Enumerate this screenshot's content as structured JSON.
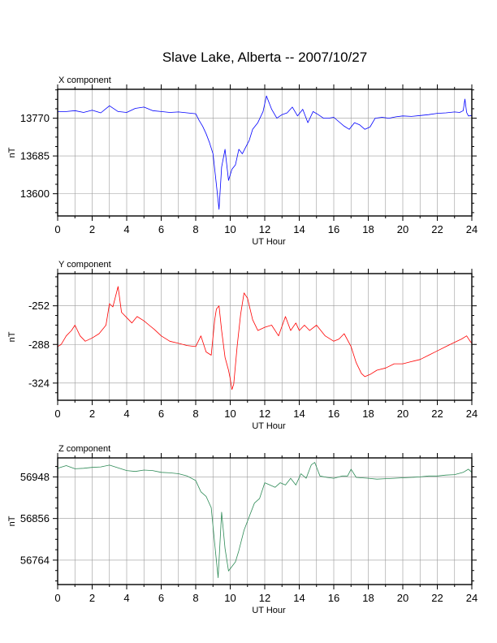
{
  "figure": {
    "title": "Slave Lake, Alberta -- 2007/10/27"
  },
  "chart_data": [
    {
      "type": "line",
      "panel_title": "X component",
      "xlabel": "UT Hour",
      "ylabel": "nT",
      "xlim": [
        0,
        24
      ],
      "ylim": [
        13550,
        13835
      ],
      "x_ticks": [
        0,
        2,
        4,
        6,
        8,
        10,
        12,
        14,
        16,
        18,
        20,
        22,
        24
      ],
      "y_ticks": [
        13600,
        13685,
        13770
      ],
      "grid": true,
      "color": "#0000ff",
      "series": [
        {
          "x": [
            0,
            0.5,
            1,
            1.5,
            2,
            2.5,
            3,
            3.5,
            4,
            4.5,
            5,
            5.5,
            6,
            6.5,
            7,
            7.5,
            8,
            8.2,
            8.4,
            8.6,
            8.8,
            9,
            9.2,
            9.35,
            9.5,
            9.7,
            9.9,
            10.1,
            10.3,
            10.5,
            10.7,
            10.9,
            11.1,
            11.3,
            11.6,
            11.9,
            12.1,
            12.4,
            12.7,
            13,
            13.3,
            13.6,
            13.9,
            14.2,
            14.5,
            14.8,
            15.1,
            15.4,
            15.7,
            16,
            16.3,
            16.6,
            16.9,
            17.2,
            17.5,
            17.8,
            18.1,
            18.4,
            18.8,
            19.2,
            19.6,
            20,
            20.5,
            21,
            21.5,
            22,
            22.5,
            23,
            23.3,
            23.5,
            23.6,
            23.7,
            23.8,
            24
          ],
          "y": [
            13785,
            13785,
            13787,
            13783,
            13788,
            13782,
            13798,
            13785,
            13783,
            13792,
            13795,
            13787,
            13785,
            13783,
            13784,
            13782,
            13780,
            13765,
            13752,
            13735,
            13715,
            13690,
            13620,
            13565,
            13660,
            13700,
            13630,
            13655,
            13665,
            13700,
            13690,
            13705,
            13720,
            13745,
            13760,
            13785,
            13820,
            13790,
            13770,
            13778,
            13782,
            13795,
            13775,
            13790,
            13760,
            13785,
            13778,
            13770,
            13770,
            13772,
            13762,
            13752,
            13745,
            13760,
            13755,
            13745,
            13750,
            13770,
            13772,
            13770,
            13773,
            13775,
            13774,
            13776,
            13778,
            13781,
            13782,
            13784,
            13783,
            13787,
            13813,
            13783,
            13775,
            13776
          ]
        }
      ]
    },
    {
      "type": "line",
      "panel_title": "Y component",
      "xlabel": "UT Hour",
      "ylabel": "nT",
      "xlim": [
        0,
        24
      ],
      "ylim": [
        -340,
        -222
      ],
      "x_ticks": [
        0,
        2,
        4,
        6,
        8,
        10,
        12,
        14,
        16,
        18,
        20,
        22,
        24
      ],
      "y_ticks": [
        -252,
        -288,
        -324
      ],
      "grid": true,
      "color": "#ff0000",
      "series": [
        {
          "x": [
            0,
            0.2,
            0.5,
            0.8,
            1,
            1.3,
            1.6,
            2,
            2.4,
            2.8,
            3,
            3.2,
            3.5,
            3.7,
            4,
            4.3,
            4.6,
            5,
            5.3,
            5.6,
            6,
            6.5,
            7,
            7.5,
            8,
            8.3,
            8.6,
            8.9,
            9.1,
            9.2,
            9.35,
            9.5,
            9.7,
            9.9,
            10,
            10.1,
            10.2,
            10.4,
            10.6,
            10.8,
            11,
            11.3,
            11.6,
            12,
            12.4,
            12.8,
            13.2,
            13.5,
            13.8,
            14,
            14.3,
            14.6,
            15,
            15.5,
            16,
            16.3,
            16.6,
            17,
            17.3,
            17.6,
            17.8,
            18.1,
            18.5,
            19,
            19.5,
            20,
            20.5,
            21,
            21.5,
            22,
            22.5,
            23,
            23.4,
            23.7,
            23.9,
            24
          ],
          "y": [
            -290,
            -288,
            -280,
            -275,
            -270,
            -280,
            -285,
            -282,
            -278,
            -270,
            -250,
            -253,
            -234,
            -258,
            -263,
            -268,
            -262,
            -266,
            -270,
            -274,
            -280,
            -285,
            -287,
            -289,
            -290,
            -280,
            -295,
            -298,
            -265,
            -255,
            -252,
            -275,
            -300,
            -312,
            -320,
            -330,
            -325,
            -290,
            -260,
            -240,
            -245,
            -265,
            -275,
            -272,
            -270,
            -280,
            -262,
            -275,
            -268,
            -275,
            -270,
            -275,
            -270,
            -280,
            -285,
            -283,
            -278,
            -290,
            -305,
            -315,
            -318,
            -316,
            -312,
            -310,
            -306,
            -306,
            -304,
            -302,
            -298,
            -294,
            -290,
            -286,
            -283,
            -280,
            -285,
            -287
          ]
        }
      ]
    },
    {
      "type": "line",
      "panel_title": "Z component",
      "xlabel": "UT Hour",
      "ylabel": "nT",
      "xlim": [
        0,
        24
      ],
      "ylim": [
        56710,
        56990
      ],
      "x_ticks": [
        0,
        2,
        4,
        6,
        8,
        10,
        12,
        14,
        16,
        18,
        20,
        22,
        24
      ],
      "y_ticks": [
        56764,
        56856,
        56948
      ],
      "grid": true,
      "color": "#2e8b57",
      "series": [
        {
          "x": [
            0,
            0.5,
            1,
            1.5,
            2,
            2.5,
            3,
            3.5,
            4,
            4.5,
            5,
            5.5,
            6,
            6.5,
            7,
            7.5,
            8,
            8.3,
            8.6,
            8.9,
            9.1,
            9.3,
            9.5,
            9.7,
            9.9,
            10.1,
            10.3,
            10.5,
            10.8,
            11.1,
            11.4,
            11.7,
            12,
            12.3,
            12.6,
            12.9,
            13.2,
            13.5,
            13.8,
            14.1,
            14.4,
            14.7,
            14.9,
            15.2,
            15.6,
            16,
            16.5,
            16.8,
            17,
            17.3,
            17.6,
            18,
            18.5,
            19,
            19.5,
            20,
            20.5,
            21,
            21.5,
            22,
            22.5,
            23,
            23.5,
            23.8,
            24
          ],
          "y": [
            56967,
            56973,
            56966,
            56967,
            56969,
            56970,
            56974,
            56968,
            56962,
            56960,
            56963,
            56962,
            56958,
            56957,
            56955,
            56950,
            56940,
            56915,
            56905,
            56880,
            56800,
            56725,
            56870,
            56790,
            56740,
            56750,
            56760,
            56785,
            56830,
            56860,
            56890,
            56900,
            56935,
            56930,
            56925,
            56935,
            56930,
            56945,
            56930,
            56955,
            56945,
            56975,
            56980,
            56950,
            56947,
            56945,
            56950,
            56950,
            56965,
            56947,
            56946,
            56945,
            56943,
            56944,
            56945,
            56946,
            56947,
            56948,
            56950,
            56950,
            56952,
            56953,
            56958,
            56965,
            56958
          ]
        }
      ]
    }
  ]
}
